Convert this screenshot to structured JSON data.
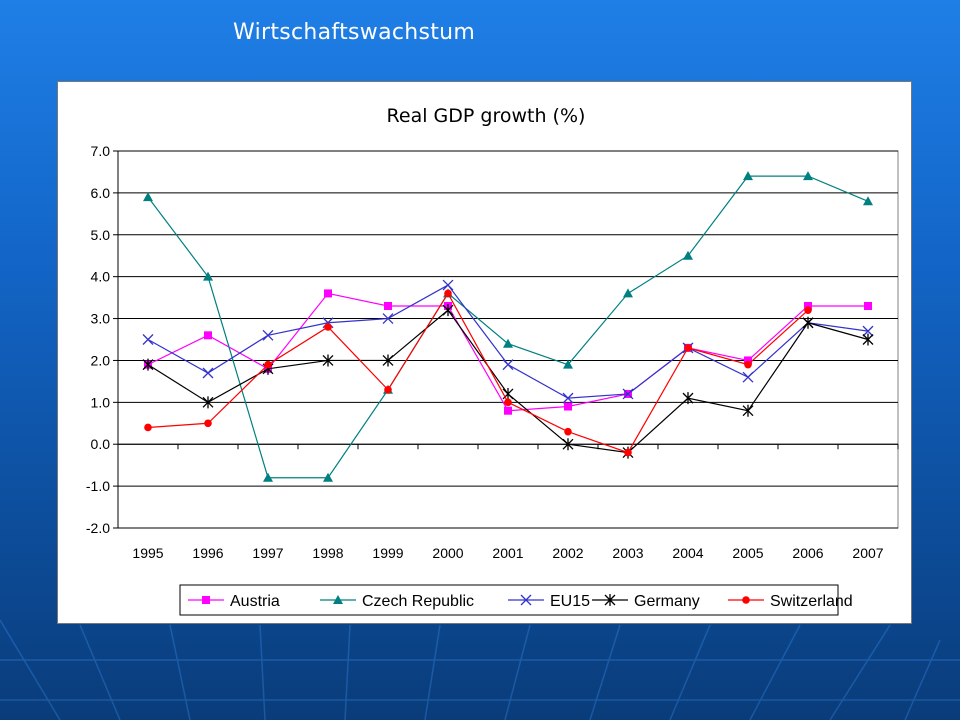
{
  "slide": {
    "title": "Wirtschaftswachstum"
  },
  "chart_data": {
    "type": "line",
    "title": "Real GDP growth (%)",
    "xlabel": "",
    "ylabel": "",
    "ylim": [
      -2.0,
      7.0
    ],
    "yticks": [
      "-2.0",
      "-1.0",
      "0.0",
      "1.0",
      "2.0",
      "3.0",
      "4.0",
      "5.0",
      "6.0",
      "7.0"
    ],
    "grid": true,
    "legend_position": "bottom",
    "categories": [
      "1995",
      "1996",
      "1997",
      "1998",
      "1999",
      "2000",
      "2001",
      "2002",
      "2003",
      "2004",
      "2005",
      "2006",
      "2007"
    ],
    "series": [
      {
        "name": "Austria",
        "color": "#ff00ff",
        "marker": "square",
        "values": [
          1.9,
          2.6,
          1.8,
          3.6,
          3.3,
          3.3,
          0.8,
          0.9,
          1.2,
          2.3,
          2.0,
          3.3,
          3.3
        ]
      },
      {
        "name": "Czech Republic",
        "color": "#008080",
        "marker": "triangle",
        "values": [
          5.9,
          4.0,
          -0.8,
          -0.8,
          1.3,
          3.6,
          2.4,
          1.9,
          3.6,
          4.5,
          6.4,
          6.4,
          5.8
        ]
      },
      {
        "name": "EU15",
        "color": "#3333cc",
        "marker": "x",
        "values": [
          2.5,
          1.7,
          2.6,
          2.9,
          3.0,
          3.8,
          1.9,
          1.1,
          1.2,
          2.3,
          1.6,
          2.9,
          2.7
        ]
      },
      {
        "name": "Germany",
        "color": "#000000",
        "marker": "star",
        "values": [
          1.9,
          1.0,
          1.8,
          2.0,
          2.0,
          3.2,
          1.2,
          0.0,
          -0.2,
          1.1,
          0.8,
          2.9,
          2.5
        ]
      },
      {
        "name": "Switzerland",
        "color": "#ff0000",
        "marker": "circle",
        "values": [
          0.4,
          0.5,
          1.9,
          2.8,
          1.3,
          3.6,
          1.0,
          0.3,
          -0.2,
          2.3,
          1.9,
          3.2,
          null
        ]
      }
    ]
  }
}
